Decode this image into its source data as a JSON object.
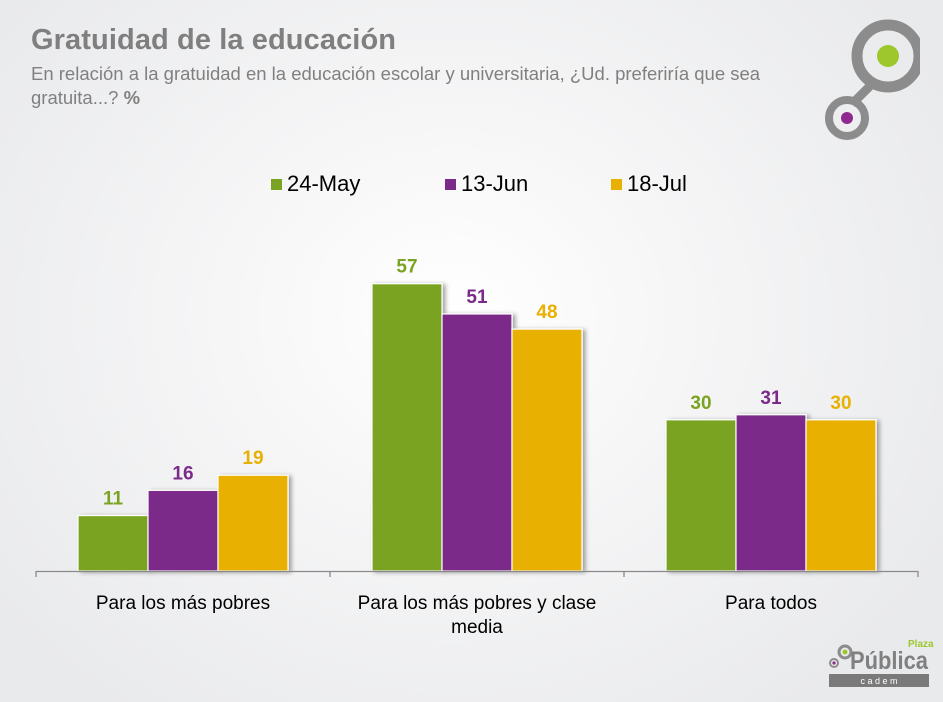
{
  "header": {
    "title": "Gratuidad de la educación",
    "subtitle": "En relación a la gratuidad en la educación escolar y universitaria, ¿Ud. preferiría que sea gratuita...?",
    "subtitle_unit": "%"
  },
  "branding": {
    "top_logo_icon": "two-circle-connector-icon",
    "bottom_logo": {
      "small": "Plaza",
      "main": "Pública",
      "sub": "c a d e m"
    }
  },
  "colors": {
    "series_24_may": "#7aa321",
    "series_13_jun": "#7b2a8a",
    "series_18_jul": "#e8b000",
    "title_gray": "#7f7f7f",
    "logo_gray": "#8c8c8c",
    "logo_green": "#9dc72d",
    "logo_purple": "#8e2a8f"
  },
  "chart_data": {
    "type": "bar",
    "title": "Gratuidad de la educación",
    "xlabel": "",
    "ylabel": "%",
    "ylim": [
      0,
      60
    ],
    "grid": false,
    "legend_position": "top-center",
    "categories": [
      "Para los más pobres",
      "Para los más pobres y clase media",
      "Para todos"
    ],
    "category_lines": [
      [
        "Para los más pobres"
      ],
      [
        "Para los más pobres y clase",
        "media"
      ],
      [
        "Para todos"
      ]
    ],
    "series": [
      {
        "name": "24-May",
        "color": "#7aa321",
        "values": [
          11,
          57,
          30
        ]
      },
      {
        "name": "13-Jun",
        "color": "#7b2a8a",
        "values": [
          16,
          51,
          31
        ]
      },
      {
        "name": "18-Jul",
        "color": "#e8b000",
        "values": [
          19,
          48,
          30
        ]
      }
    ]
  }
}
